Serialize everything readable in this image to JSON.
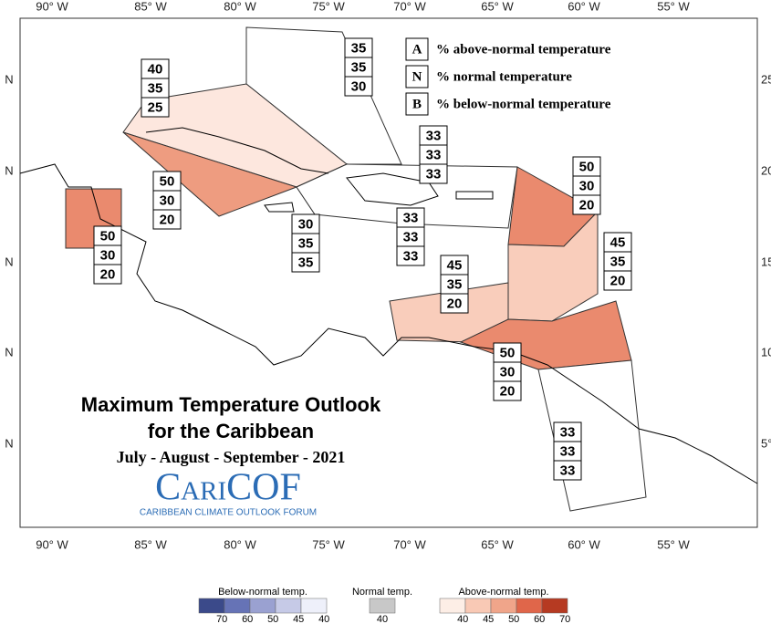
{
  "longitudes": [
    "90° W",
    "85° W",
    "80° W",
    "75° W",
    "70° W",
    "65° W",
    "60° W",
    "55° W"
  ],
  "latitudes_left": [
    "N",
    "N",
    "N",
    "N",
    "N"
  ],
  "latitudes_right": [
    "25",
    "20",
    "15",
    "10",
    "5°"
  ],
  "key": [
    {
      "letter": "A",
      "text": "% above-normal temperature"
    },
    {
      "letter": "N",
      "text": "% normal temperature"
    },
    {
      "letter": "B",
      "text": "% below-normal temperature"
    }
  ],
  "regions": [
    {
      "values": [
        35,
        35,
        30
      ],
      "color": "#ffffff"
    },
    {
      "values": [
        40,
        35,
        25
      ],
      "color": "#fde7de"
    },
    {
      "values": [
        50,
        30,
        20
      ],
      "color": "#ee9c80"
    },
    {
      "values": [
        50,
        30,
        20
      ],
      "color": "#ea8a6e"
    },
    {
      "values": [
        30,
        35,
        35
      ],
      "color": "#ffffff"
    },
    {
      "values": [
        33,
        33,
        33
      ],
      "color": "#ffffff"
    },
    {
      "values": [
        33,
        33,
        33
      ],
      "color": "#ffffff"
    },
    {
      "values": [
        50,
        30,
        20
      ],
      "color": "#ea8a6e"
    },
    {
      "values": [
        45,
        35,
        20
      ],
      "color": "#f9cdbb"
    },
    {
      "values": [
        45,
        35,
        20
      ],
      "color": "#f9cdbb"
    },
    {
      "values": [
        50,
        30,
        20
      ],
      "color": "#ea8a6e"
    },
    {
      "values": [
        33,
        33,
        33
      ],
      "color": "#ffffff"
    }
  ],
  "title": [
    "Maximum Temperature Outlook",
    "for the Caribbean"
  ],
  "period": "July - August - September - 2021",
  "logo": {
    "name": "CariCOF",
    "tagline": "CARIBBEAN CLIMATE OUTLOOK FORUM"
  },
  "colorbar": [
    {
      "label": "Below-normal temp.",
      "ticks": [
        70,
        60,
        50,
        45,
        40
      ],
      "colors": [
        "#3b4a8a",
        "#6673b6",
        "#9aa1d1",
        "#c6cae7",
        "#eef0fa"
      ]
    },
    {
      "label": "Normal temp.",
      "ticks": [
        40
      ],
      "colors": [
        "#c8c8c8"
      ]
    },
    {
      "label": "Above-normal temp.",
      "ticks": [
        40,
        45,
        50,
        60,
        70
      ],
      "colors": [
        "#fdeee6",
        "#f9c9b5",
        "#f0a58a",
        "#e0664a",
        "#b63a22"
      ]
    }
  ]
}
